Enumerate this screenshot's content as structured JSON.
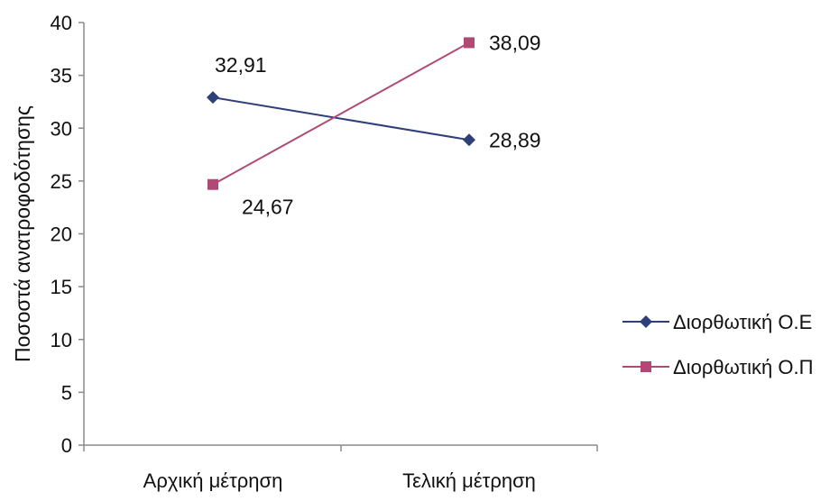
{
  "chart_data": {
    "type": "line",
    "title": "",
    "xlabel": "",
    "ylabel": "Ποσοστά ανατροφοδότησης",
    "ylim": [
      0,
      40
    ],
    "y_ticks": [
      0,
      5,
      10,
      15,
      20,
      25,
      30,
      35,
      40
    ],
    "categories": [
      "Αρχική μέτρηση",
      "Τελική μέτρηση"
    ],
    "series": [
      {
        "name": "Διορθωτική Ο.Ε",
        "values": [
          32.91,
          28.89
        ],
        "labels": [
          "32,91",
          "28,89"
        ],
        "color": "#2e3f7a",
        "marker": "diamond"
      },
      {
        "name": "Διορθωτική Ο.Π",
        "values": [
          24.67,
          38.09
        ],
        "labels": [
          "24,67",
          "38,09"
        ],
        "color": "#b04a74",
        "marker": "square"
      }
    ],
    "grid": false,
    "legend_position": "right"
  }
}
